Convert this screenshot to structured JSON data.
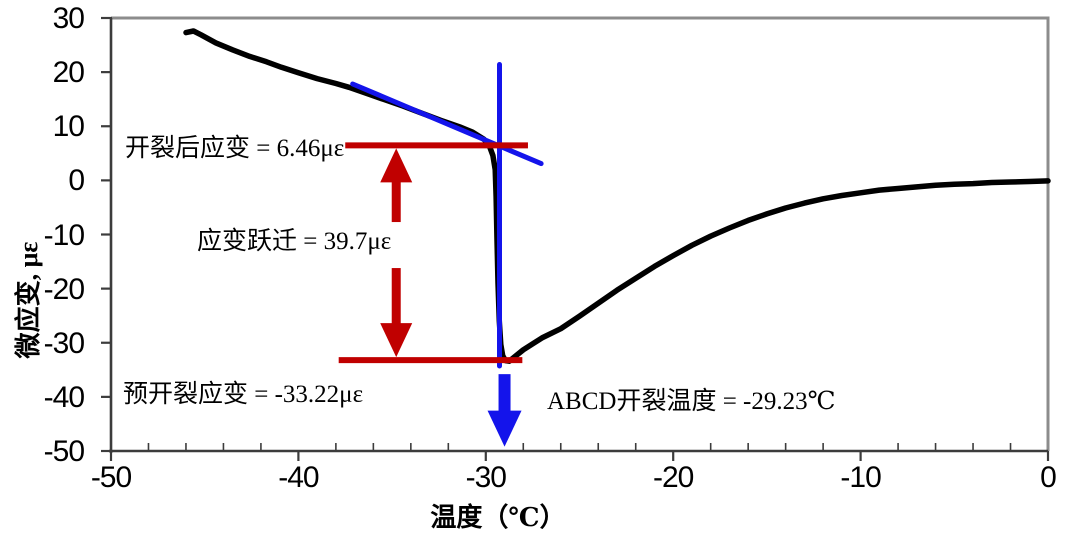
{
  "figure": {
    "background": "#ffffff"
  },
  "colors": {
    "curve_black": "#000000",
    "guide_blue": "#1414eb",
    "marker_red": "#c00000",
    "frame_gray": "#8c8c8c",
    "axis_dark": "#3c3c3c",
    "text": "#000000"
  },
  "chart_data": {
    "type": "line",
    "title": "",
    "xlabel": "温度（℃）",
    "ylabel": "微应变, με",
    "xlim": [
      -50,
      0
    ],
    "ylim": [
      -50,
      30
    ],
    "x_ticks": [
      -50,
      -40,
      -30,
      -20,
      -10,
      0
    ],
    "y_ticks": [
      30,
      20,
      10,
      0,
      -10,
      -20,
      -30,
      -40,
      -50
    ],
    "x_minor_step": 2,
    "grid": false,
    "legend_position": "none",
    "series": [
      {
        "name": "thermal-strain-curve",
        "color": "#000000",
        "width": 5.5,
        "points": [
          [
            -46.0,
            27.3
          ],
          [
            -45.6,
            27.6
          ],
          [
            -45.2,
            26.9
          ],
          [
            -44.4,
            25.4
          ],
          [
            -43.5,
            24.1
          ],
          [
            -42.6,
            22.9
          ],
          [
            -41.7,
            21.9
          ],
          [
            -40.9,
            20.9
          ],
          [
            -40.0,
            19.9
          ],
          [
            -39.0,
            18.8
          ],
          [
            -38.0,
            17.9
          ],
          [
            -37.3,
            17.2
          ],
          [
            -36.4,
            16.1
          ],
          [
            -35.4,
            14.9
          ],
          [
            -34.4,
            13.7
          ],
          [
            -33.4,
            12.4
          ],
          [
            -32.4,
            11.1
          ],
          [
            -31.4,
            9.9
          ],
          [
            -30.7,
            8.9
          ],
          [
            -30.1,
            7.6
          ],
          [
            -29.8,
            6.3
          ],
          [
            -29.62,
            4.6
          ],
          [
            -29.5,
            2.0
          ],
          [
            -29.45,
            -3.0
          ],
          [
            -29.4,
            -11.0
          ],
          [
            -29.35,
            -19.0
          ],
          [
            -29.28,
            -26.0
          ],
          [
            -29.2,
            -30.3
          ],
          [
            -29.1,
            -32.4
          ],
          [
            -28.95,
            -33.3
          ],
          [
            -28.75,
            -33.4
          ],
          [
            -28.5,
            -32.7
          ],
          [
            -28.0,
            -31.3
          ],
          [
            -27.5,
            -30.2
          ],
          [
            -27.0,
            -29.1
          ],
          [
            -26.0,
            -27.4
          ],
          [
            -25.0,
            -25.1
          ],
          [
            -24.0,
            -22.7
          ],
          [
            -23.0,
            -20.3
          ],
          [
            -22.0,
            -18.1
          ],
          [
            -21.0,
            -15.9
          ],
          [
            -20.0,
            -13.9
          ],
          [
            -19.0,
            -12.0
          ],
          [
            -18.0,
            -10.3
          ],
          [
            -17.0,
            -8.8
          ],
          [
            -16.0,
            -7.4
          ],
          [
            -15.0,
            -6.2
          ],
          [
            -14.0,
            -5.1
          ],
          [
            -13.0,
            -4.2
          ],
          [
            -12.0,
            -3.4
          ],
          [
            -11.0,
            -2.8
          ],
          [
            -10.0,
            -2.3
          ],
          [
            -9.0,
            -1.8
          ],
          [
            -8.0,
            -1.5
          ],
          [
            -7.0,
            -1.2
          ],
          [
            -6.0,
            -0.9
          ],
          [
            -5.0,
            -0.7
          ],
          [
            -4.0,
            -0.6
          ],
          [
            -3.0,
            -0.4
          ],
          [
            -2.0,
            -0.3
          ],
          [
            -1.0,
            -0.2
          ],
          [
            0.0,
            -0.1
          ]
        ]
      },
      {
        "name": "pre-crack-tangent-line",
        "color": "#1414eb",
        "width": 5,
        "points": [
          [
            -37.1,
            17.8
          ],
          [
            -27.05,
            3.1
          ]
        ]
      },
      {
        "name": "crack-temperature-vertical-line",
        "color": "#1414eb",
        "width": 5,
        "points": [
          [
            -29.27,
            21.4
          ],
          [
            -29.27,
            -34.3
          ]
        ]
      }
    ],
    "annotations": {
      "post_crack_strain": {
        "label": "开裂后应变 = 6.46με",
        "value_ue": 6.46
      },
      "strain_jump": {
        "label": "应变跃迁 = 39.7με",
        "value_ue": 39.7
      },
      "pre_crack_strain": {
        "label": "预开裂应变 = -33.22με",
        "value_ue": -33.22
      },
      "crack_temperature": {
        "label": "ABCD开裂温度 = -29.23℃",
        "value_c": -29.23
      }
    },
    "markers": {
      "post_crack_line": {
        "y": 6.46,
        "x1": -37.5,
        "x2": -27.75,
        "color": "#c00000"
      },
      "pre_crack_line": {
        "y": -33.22,
        "x1": -37.85,
        "x2": -28.05,
        "color": "#c00000"
      },
      "strain_jump_arrow": {
        "x": -34.78,
        "y_top": 6.46,
        "y_bottom": -33.22,
        "label_gap_y": [
          -7.7,
          -16.2
        ],
        "color": "#c00000"
      },
      "crack_temp_arrow": {
        "x": -29.0,
        "y_top": -35.8,
        "y_bottom": -49.2,
        "color": "#1414eb"
      }
    }
  }
}
